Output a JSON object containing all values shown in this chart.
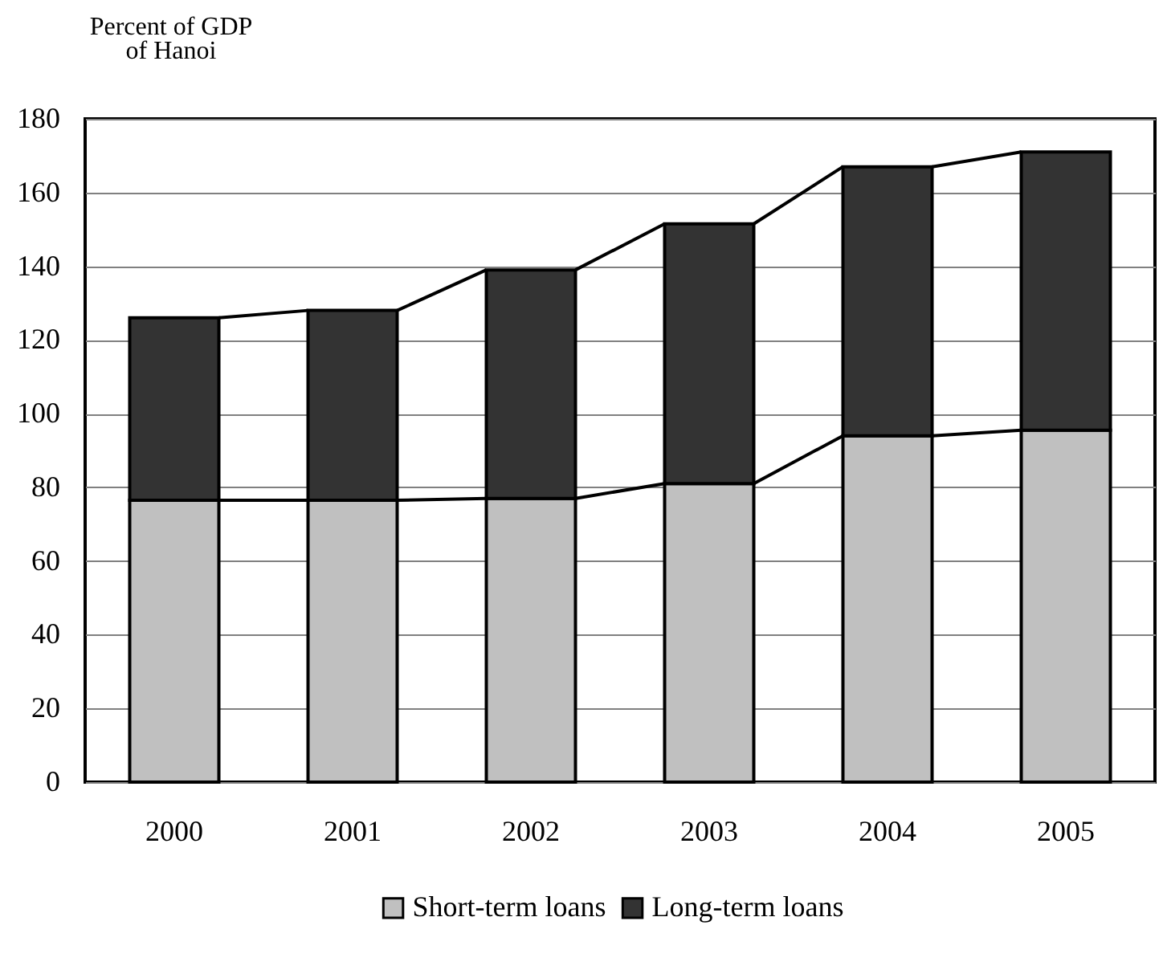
{
  "chart_data": {
    "type": "bar",
    "ylabel": "Percent of GDP\nof Hanoi",
    "categories": [
      "2000",
      "2001",
      "2002",
      "2003",
      "2004",
      "2005"
    ],
    "series": [
      {
        "name": "Short-term loans",
        "color": "#c0c0c0",
        "values": [
          76.5,
          76.5,
          77,
          81,
          94,
          95.5
        ]
      },
      {
        "name": "Long-term loans",
        "color": "#333333",
        "values": [
          49.5,
          51.5,
          62,
          70.5,
          73,
          75.5
        ]
      }
    ],
    "stacked": true,
    "ylim": [
      0,
      180
    ],
    "yticks": [
      0,
      20,
      40,
      60,
      80,
      100,
      120,
      140,
      160,
      180
    ],
    "grid": "y",
    "legend": "bottom"
  }
}
